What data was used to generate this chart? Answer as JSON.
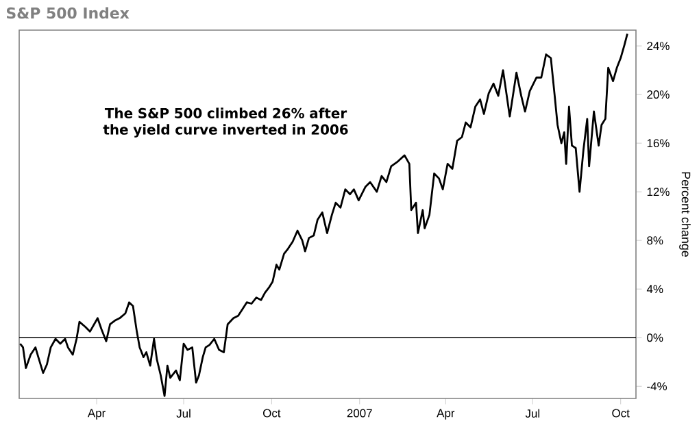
{
  "chart_data": {
    "type": "line",
    "title": "S&P 500 Index",
    "ylabel": "Percent change",
    "annotations": [
      "The S&P 500 climbed 26% after the yield curve inverted in 2006"
    ],
    "xlim": [
      "2006-01-10",
      "2007-10-17"
    ],
    "xticks": [
      {
        "value": "2006-04-01",
        "label": "Apr"
      },
      {
        "value": "2006-07-01",
        "label": "Jul"
      },
      {
        "value": "2006-10-01",
        "label": "Oct"
      },
      {
        "value": "2007-01-01",
        "label": "2007"
      },
      {
        "value": "2007-04-01",
        "label": "Apr"
      },
      {
        "value": "2007-07-01",
        "label": "Jul"
      },
      {
        "value": "2007-10-01",
        "label": "Oct"
      }
    ],
    "ylim": [
      -5,
      25.3
    ],
    "yticks": [
      {
        "value": -4,
        "label": "-4%"
      },
      {
        "value": 0,
        "label": "0%"
      },
      {
        "value": 4,
        "label": "4%"
      },
      {
        "value": 8,
        "label": "8%"
      },
      {
        "value": 12,
        "label": "12%"
      },
      {
        "value": 16,
        "label": "16%"
      },
      {
        "value": 20,
        "label": "20%"
      },
      {
        "value": 24,
        "label": "24%"
      }
    ],
    "ref_lines": [
      {
        "axis": "y",
        "value": 0,
        "color": "#000000"
      }
    ],
    "series": [
      {
        "color": "#000000",
        "x": [
          "2006-01-11",
          "2006-01-14",
          "2006-01-17",
          "2006-01-22",
          "2006-01-27",
          "2006-01-30",
          "2006-02-04",
          "2006-02-08",
          "2006-02-12",
          "2006-02-17",
          "2006-02-22",
          "2006-02-27",
          "2006-03-02",
          "2006-03-07",
          "2006-03-11",
          "2006-03-14",
          "2006-03-20",
          "2006-03-25",
          "2006-04-02",
          "2006-04-06",
          "2006-04-11",
          "2006-04-15",
          "2006-04-20",
          "2006-04-25",
          "2006-05-01",
          "2006-05-05",
          "2006-05-09",
          "2006-05-13",
          "2006-05-16",
          "2006-05-20",
          "2006-05-23",
          "2006-05-27",
          "2006-05-31",
          "2006-06-03",
          "2006-06-07",
          "2006-06-11",
          "2006-06-14",
          "2006-06-17",
          "2006-06-23",
          "2006-06-27",
          "2006-07-01",
          "2006-07-05",
          "2006-07-10",
          "2006-07-14",
          "2006-07-17",
          "2006-07-21",
          "2006-07-24",
          "2006-07-28",
          "2006-08-02",
          "2006-08-07",
          "2006-08-12",
          "2006-08-16",
          "2006-08-22",
          "2006-08-27",
          "2006-09-01",
          "2006-09-05",
          "2006-09-10",
          "2006-09-15",
          "2006-09-20",
          "2006-09-24",
          "2006-09-28",
          "2006-10-02",
          "2006-10-06",
          "2006-10-09",
          "2006-10-14",
          "2006-10-18",
          "2006-10-23",
          "2006-10-28",
          "2006-11-02",
          "2006-11-05",
          "2006-11-09",
          "2006-11-14",
          "2006-11-18",
          "2006-11-23",
          "2006-11-28",
          "2006-12-03",
          "2006-12-07",
          "2006-12-12",
          "2006-12-17",
          "2006-12-22",
          "2006-12-26",
          "2006-12-31",
          "2007-01-07",
          "2007-01-12",
          "2007-01-19",
          "2007-01-24",
          "2007-01-29",
          "2007-02-03",
          "2007-02-10",
          "2007-02-17",
          "2007-02-22",
          "2007-02-24",
          "2007-03-01",
          "2007-03-03",
          "2007-03-08",
          "2007-03-10",
          "2007-03-15",
          "2007-03-20",
          "2007-03-25",
          "2007-03-29",
          "2007-04-03",
          "2007-04-08",
          "2007-04-13",
          "2007-04-18",
          "2007-04-22",
          "2007-04-27",
          "2007-05-02",
          "2007-05-07",
          "2007-05-11",
          "2007-05-16",
          "2007-05-21",
          "2007-05-26",
          "2007-05-31",
          "2007-06-07",
          "2007-06-14",
          "2007-06-19",
          "2007-06-23",
          "2007-06-28",
          "2007-07-05",
          "2007-07-10",
          "2007-07-15",
          "2007-07-20",
          "2007-07-24",
          "2007-07-27",
          "2007-07-31",
          "2007-08-03",
          "2007-08-05",
          "2007-08-08",
          "2007-08-11",
          "2007-08-15",
          "2007-08-19",
          "2007-08-23",
          "2007-08-27",
          "2007-08-29",
          "2007-09-03",
          "2007-09-08",
          "2007-09-11",
          "2007-09-15",
          "2007-09-18",
          "2007-09-23",
          "2007-09-27",
          "2007-10-01",
          "2007-10-05",
          "2007-10-08"
        ],
        "values": [
          -0.5,
          -0.8,
          -2.5,
          -1.4,
          -0.8,
          -1.6,
          -2.9,
          -2.2,
          -0.8,
          -0.1,
          -0.5,
          -0.1,
          -0.8,
          -1.4,
          -0.1,
          1.3,
          0.9,
          0.5,
          1.6,
          0.7,
          -0.3,
          1.1,
          1.4,
          1.6,
          2.0,
          2.9,
          2.6,
          0.5,
          -0.8,
          -1.6,
          -1.2,
          -2.3,
          -0.1,
          -1.8,
          -3.1,
          -4.8,
          -2.3,
          -3.3,
          -2.7,
          -3.5,
          -0.5,
          -1.0,
          -0.8,
          -3.7,
          -3.1,
          -1.6,
          -0.8,
          -0.6,
          -0.1,
          -1.0,
          -1.2,
          1.1,
          1.6,
          1.8,
          2.4,
          2.9,
          2.8,
          3.3,
          3.1,
          3.7,
          4.1,
          4.6,
          6.0,
          5.6,
          6.9,
          7.3,
          7.9,
          8.8,
          8.0,
          7.1,
          8.2,
          8.4,
          9.7,
          10.3,
          8.6,
          10.1,
          11.1,
          10.7,
          12.2,
          11.8,
          12.2,
          11.3,
          12.4,
          12.8,
          12.0,
          13.3,
          12.8,
          14.1,
          14.5,
          15.0,
          14.3,
          10.5,
          11.1,
          8.6,
          10.5,
          9.0,
          10.1,
          13.5,
          13.1,
          12.2,
          14.3,
          13.9,
          16.2,
          16.5,
          17.7,
          17.3,
          19.0,
          19.6,
          18.4,
          20.1,
          20.9,
          19.9,
          22.0,
          18.2,
          21.8,
          19.9,
          18.6,
          20.3,
          21.4,
          21.4,
          23.3,
          23.0,
          19.9,
          17.5,
          16.0,
          16.9,
          14.3,
          19.0,
          15.8,
          15.6,
          12.0,
          15.4,
          18.0,
          14.1,
          18.6,
          15.8,
          17.5,
          18.0,
          22.2,
          21.1,
          22.2,
          23.0,
          24.1,
          25.0
        ]
      }
    ]
  }
}
